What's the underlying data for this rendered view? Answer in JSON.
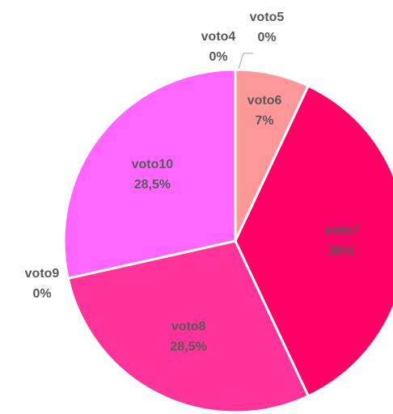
{
  "chart_data": {
    "type": "pie",
    "categories": [
      "voto4",
      "voto5",
      "voto6",
      "voto7",
      "voto8",
      "voto9",
      "voto10"
    ],
    "values": [
      0,
      0,
      7,
      36,
      28.5,
      0,
      28.5
    ],
    "value_labels": [
      "0%",
      "0%",
      "7%",
      "36%",
      "28,5%",
      "0%",
      "28,5%"
    ],
    "colors": [
      "#ff99cc",
      "#ffccee",
      "#ff9999",
      "#ff0066",
      "#ff3399",
      "#cc66ff",
      "#ff66ff"
    ]
  }
}
